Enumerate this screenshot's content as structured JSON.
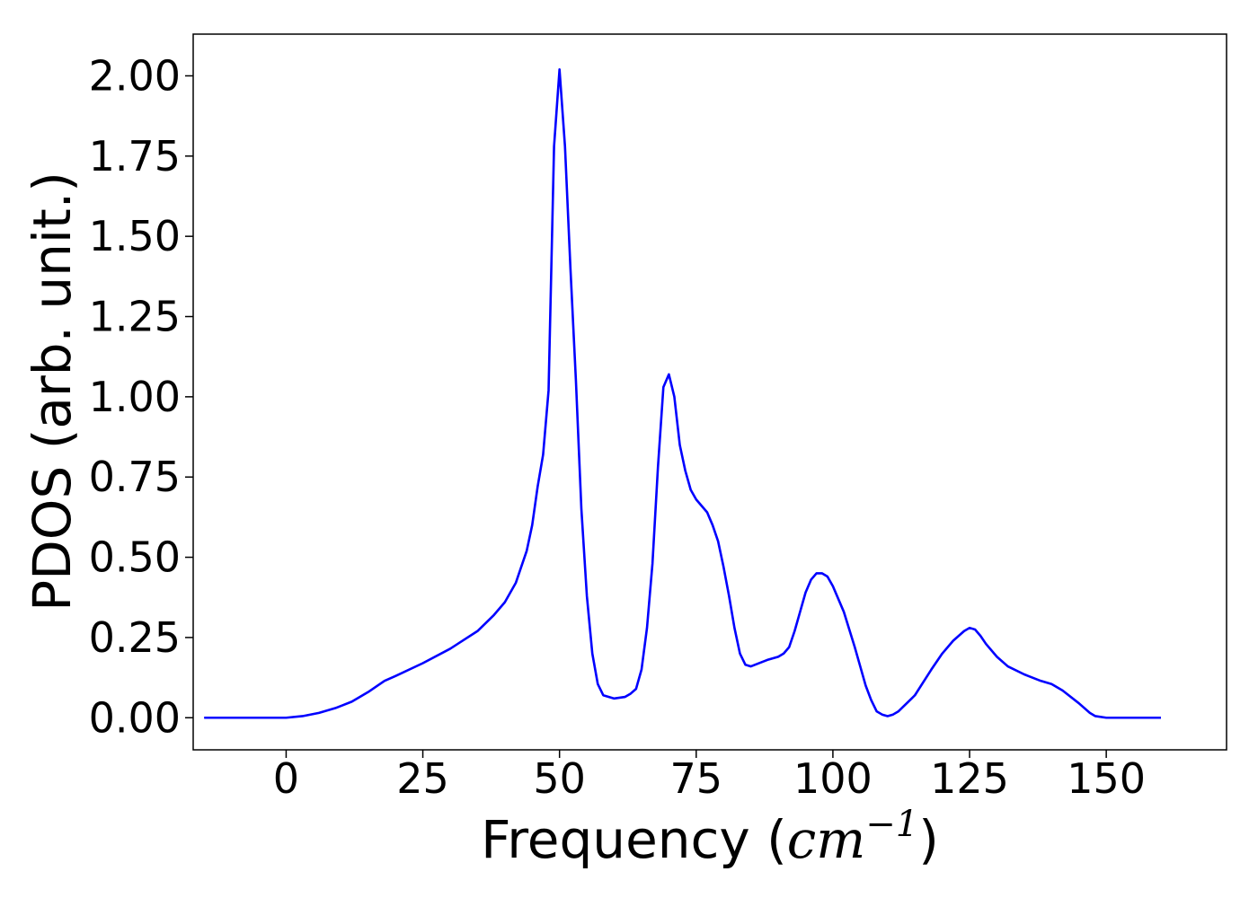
{
  "chart_data": {
    "type": "line",
    "xlabel": {
      "text": "Frequency (",
      "unit_base": "cm",
      "unit_exp": "−1",
      "close": ")"
    },
    "ylabel": "PDOS (arb. unit.)",
    "xlim": [
      -17,
      172
    ],
    "ylim": [
      -0.1,
      2.13
    ],
    "xticks": [
      {
        "value": 0,
        "label": "0"
      },
      {
        "value": 25,
        "label": "25"
      },
      {
        "value": 50,
        "label": "50"
      },
      {
        "value": 75,
        "label": "75"
      },
      {
        "value": 100,
        "label": "100"
      },
      {
        "value": 125,
        "label": "125"
      },
      {
        "value": 150,
        "label": "150"
      }
    ],
    "yticks": [
      {
        "value": 0.0,
        "label": "0.00"
      },
      {
        "value": 0.25,
        "label": "0.25"
      },
      {
        "value": 0.5,
        "label": "0.50"
      },
      {
        "value": 0.75,
        "label": "0.75"
      },
      {
        "value": 1.0,
        "label": "1.00"
      },
      {
        "value": 1.25,
        "label": "1.25"
      },
      {
        "value": 1.5,
        "label": "1.50"
      },
      {
        "value": 1.75,
        "label": "1.75"
      },
      {
        "value": 2.0,
        "label": "2.00"
      }
    ],
    "grid": false,
    "series": [
      {
        "color": "#0000ff",
        "x": [
          -15,
          -5,
          0,
          3,
          6,
          9,
          12,
          15,
          18,
          20,
          25,
          30,
          35,
          38,
          40,
          42,
          44,
          45,
          46,
          47,
          48,
          49,
          50,
          51,
          52,
          53,
          54,
          55,
          56,
          57,
          58,
          60,
          62,
          63,
          64,
          65,
          66,
          67,
          68,
          69,
          70,
          71,
          72,
          73,
          74,
          75,
          77,
          78,
          79,
          80,
          81,
          82,
          83,
          84,
          85,
          88,
          90,
          91,
          92,
          93,
          94,
          95,
          96,
          97,
          98,
          99,
          100,
          102,
          104,
          105,
          106,
          107,
          108,
          109,
          110,
          111,
          112,
          115,
          118,
          120,
          122,
          124,
          125,
          126,
          127,
          128,
          130,
          132,
          135,
          138,
          140,
          142,
          145,
          147,
          148,
          150,
          160
        ],
        "y": [
          0.0,
          0.0,
          0.0,
          0.005,
          0.015,
          0.03,
          0.05,
          0.08,
          0.115,
          0.13,
          0.17,
          0.215,
          0.27,
          0.32,
          0.36,
          0.42,
          0.52,
          0.6,
          0.72,
          0.82,
          1.02,
          1.78,
          2.02,
          1.78,
          1.4,
          1.05,
          0.65,
          0.38,
          0.2,
          0.105,
          0.07,
          0.06,
          0.065,
          0.075,
          0.09,
          0.15,
          0.28,
          0.48,
          0.78,
          1.03,
          1.07,
          1.0,
          0.85,
          0.77,
          0.71,
          0.68,
          0.64,
          0.6,
          0.55,
          0.47,
          0.38,
          0.28,
          0.2,
          0.165,
          0.16,
          0.18,
          0.19,
          0.2,
          0.22,
          0.27,
          0.33,
          0.39,
          0.43,
          0.45,
          0.45,
          0.44,
          0.41,
          0.33,
          0.22,
          0.16,
          0.1,
          0.055,
          0.02,
          0.01,
          0.005,
          0.01,
          0.02,
          0.07,
          0.15,
          0.2,
          0.24,
          0.27,
          0.28,
          0.275,
          0.255,
          0.23,
          0.19,
          0.16,
          0.135,
          0.115,
          0.105,
          0.085,
          0.045,
          0.015,
          0.005,
          0.0,
          0.0
        ]
      }
    ]
  }
}
